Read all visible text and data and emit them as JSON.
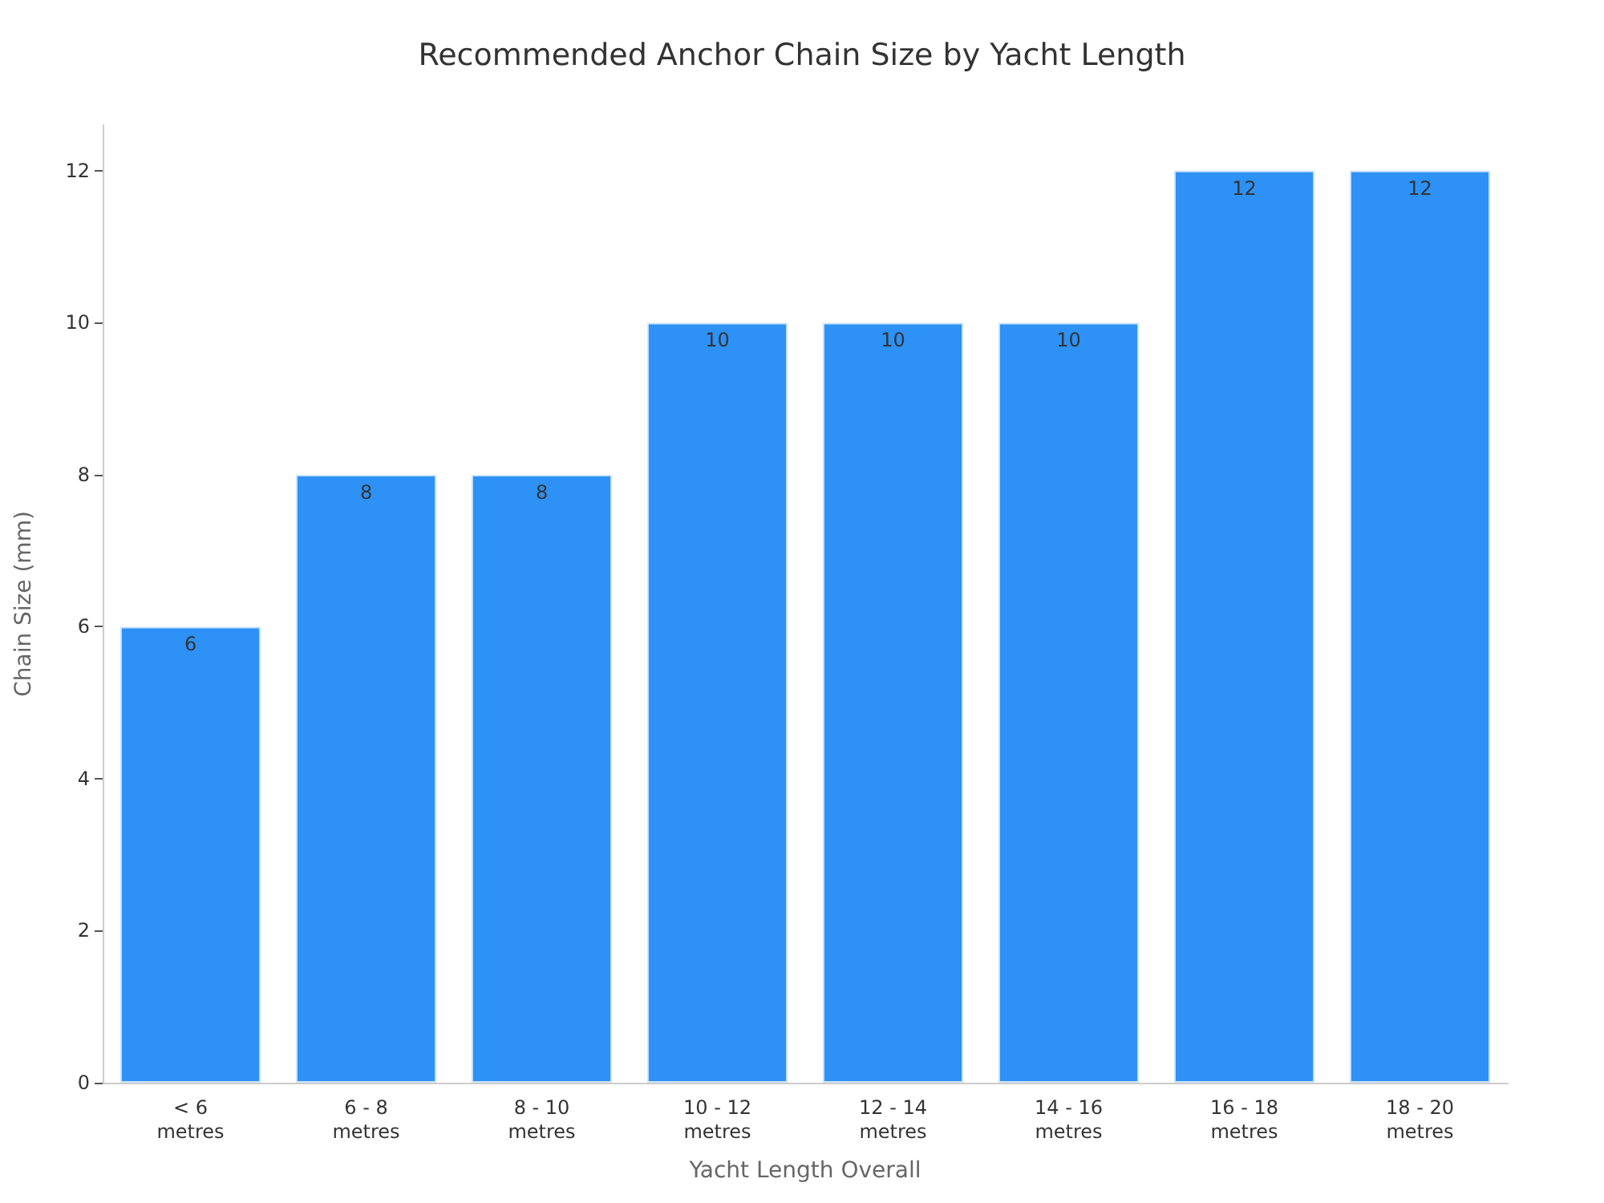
{
  "chart_data": {
    "type": "bar",
    "title": "Recommended Anchor Chain Size by Yacht Length",
    "xlabel": "Yacht Length Overall",
    "ylabel": "Chain Size (mm)",
    "categories": [
      "< 6\nmetres",
      "6 - 8\nmetres",
      "8 - 10\nmetres",
      "10 - 12\nmetres",
      "12 - 14\nmetres",
      "14 - 16\nmetres",
      "16 - 18\nmetres",
      "18 - 20\nmetres"
    ],
    "values": [
      6,
      8,
      8,
      10,
      10,
      10,
      12,
      12
    ],
    "color": "#2d91f5",
    "ylim": [
      0,
      12.6
    ],
    "yticks": [
      0,
      2,
      4,
      6,
      8,
      10,
      12
    ],
    "grid": false,
    "data_labels": true
  }
}
